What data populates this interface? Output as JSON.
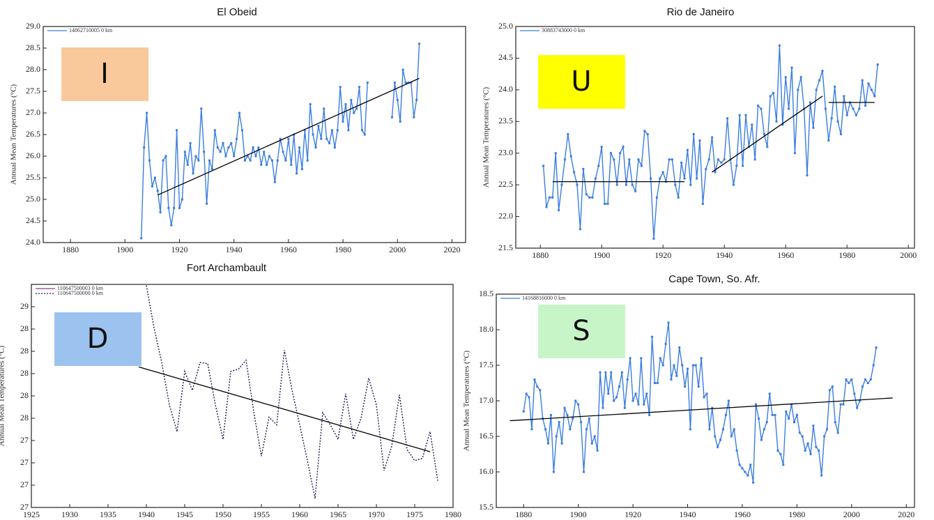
{
  "chart_data": [
    {
      "type": "line",
      "title": "El Obeid",
      "ylabel": "Annual Mean Temperatures (°C)",
      "badge": {
        "label": "I",
        "color": "#f9c89b"
      },
      "markers": true,
      "line_style": "solid",
      "xlim": [
        1870,
        2025
      ],
      "xticks": [
        1880,
        1900,
        1920,
        1940,
        1960,
        1980,
        2000,
        2020
      ],
      "ylim": [
        24,
        29
      ],
      "yticks": [
        {
          "value": 24,
          "label": "24.0"
        },
        {
          "value": 24.5,
          "label": "24.5"
        },
        {
          "value": 25,
          "label": "25.0"
        },
        {
          "value": 25.5,
          "label": "25.5"
        },
        {
          "value": 26,
          "label": "26.0"
        },
        {
          "value": 26.5,
          "label": "26.5"
        },
        {
          "value": 27,
          "label": "27.0"
        },
        {
          "value": 27.5,
          "label": "27.5"
        },
        {
          "value": 28,
          "label": "28.0"
        },
        {
          "value": 28.5,
          "label": "28.5"
        },
        {
          "value": 29,
          "label": "29.0"
        }
      ],
      "trend": {
        "x": [
          1912,
          2008
        ],
        "y": [
          25.1,
          27.8
        ]
      },
      "x": [
        1906,
        1907,
        1908,
        1909,
        1910,
        1911,
        1912,
        1913,
        1914,
        1915,
        1916,
        1917,
        1918,
        1919,
        1920,
        1921,
        1922,
        1923,
        1924,
        1925,
        1926,
        1927,
        1928,
        1929,
        1930,
        1931,
        1932,
        1933,
        1934,
        1935,
        1936,
        1937,
        1938,
        1939,
        1940,
        1941,
        1942,
        1943,
        1944,
        1945,
        1946,
        1947,
        1948,
        1949,
        1950,
        1951,
        1952,
        1953,
        1954,
        1955,
        1956,
        1957,
        1958,
        1959,
        1960,
        1961,
        1962,
        1963,
        1964,
        1965,
        1966,
        1967,
        1968,
        1969,
        1970,
        1971,
        1972,
        1973,
        1974,
        1975,
        1976,
        1977,
        1978,
        1979,
        1980,
        1981,
        1982,
        1983,
        1984,
        1985,
        1986,
        1987,
        1988,
        1989,
        1990,
        1991,
        1992,
        1993,
        1994,
        1995,
        1996,
        1997,
        1998,
        1999,
        2000,
        2001,
        2002,
        2003,
        2004,
        2005,
        2006,
        2007,
        2008
      ],
      "series": [
        {
          "name": "14862710005 0 km",
          "color": "#3a7de0",
          "values": [
            24.1,
            26.2,
            27.0,
            25.9,
            25.3,
            25.5,
            25.2,
            24.7,
            25.9,
            26.0,
            24.8,
            24.4,
            24.8,
            26.6,
            24.8,
            25.0,
            26.1,
            25.8,
            26.3,
            25.6,
            26.0,
            25.9,
            27.1,
            26.1,
            24.9,
            25.9,
            25.7,
            26.6,
            26.2,
            26.1,
            26.3,
            26.0,
            26.2,
            26.3,
            26.0,
            26.4,
            27.0,
            26.6,
            25.9,
            26.0,
            25.9,
            26.2,
            26.0,
            26.2,
            25.8,
            26.1,
            25.8,
            26.0,
            25.9,
            25.4,
            25.9,
            26.4,
            26.1,
            25.9,
            26.4,
            25.8,
            26.5,
            25.6,
            26.2,
            25.7,
            26.6,
            25.9,
            27.2,
            26.5,
            26.2,
            26.7,
            26.4,
            27.1,
            26.4,
            26.3,
            26.6,
            26.2,
            26.6,
            27.6,
            26.8,
            27.2,
            26.6,
            27.3,
            27.0,
            27.1,
            27.6,
            26.6,
            26.5,
            27.7,
            null,
            null,
            null,
            null,
            null,
            null,
            null,
            null,
            26.9,
            27.7,
            27.3,
            26.8,
            28.0,
            27.7,
            27.7,
            27.7,
            26.9,
            27.3,
            28.6
          ]
        }
      ]
    },
    {
      "type": "line",
      "title": "Rio de Janeiro",
      "ylabel": "Annual Mean Temperatures (°C)",
      "badge": {
        "label": "U",
        "color": "#ffff00"
      },
      "markers": true,
      "line_style": "solid",
      "xlim": [
        1872,
        2002
      ],
      "xticks": [
        1880,
        1900,
        1920,
        1940,
        1960,
        1980,
        2000
      ],
      "ylim": [
        21.5,
        25
      ],
      "yticks": [
        {
          "value": 21.5,
          "label": "21.5"
        },
        {
          "value": 22,
          "label": "22.0"
        },
        {
          "value": 22.5,
          "label": "22.5"
        },
        {
          "value": 23,
          "label": "23.0"
        },
        {
          "value": 23.5,
          "label": "23.5"
        },
        {
          "value": 24,
          "label": "24.0"
        },
        {
          "value": 24.5,
          "label": "24.5"
        },
        {
          "value": 25,
          "label": "25.0"
        }
      ],
      "trends": [
        {
          "x": [
            1884,
            1927
          ],
          "y": [
            22.55,
            22.55
          ]
        },
        {
          "x": [
            1936,
            1972
          ],
          "y": [
            22.7,
            23.9
          ]
        },
        {
          "x": [
            1974,
            1989
          ],
          "y": [
            23.8,
            23.8
          ]
        }
      ],
      "x": [
        1881,
        1882,
        1883,
        1884,
        1885,
        1886,
        1887,
        1888,
        1889,
        1890,
        1891,
        1892,
        1893,
        1894,
        1895,
        1896,
        1897,
        1898,
        1899,
        1900,
        1901,
        1902,
        1903,
        1904,
        1905,
        1906,
        1907,
        1908,
        1909,
        1910,
        1911,
        1912,
        1913,
        1914,
        1915,
        1916,
        1917,
        1918,
        1919,
        1920,
        1921,
        1922,
        1923,
        1924,
        1925,
        1926,
        1927,
        1928,
        1929,
        1930,
        1931,
        1932,
        1933,
        1934,
        1935,
        1936,
        1937,
        1938,
        1939,
        1940,
        1941,
        1942,
        1943,
        1944,
        1945,
        1946,
        1947,
        1948,
        1949,
        1950,
        1951,
        1952,
        1953,
        1954,
        1955,
        1956,
        1957,
        1958,
        1959,
        1960,
        1961,
        1962,
        1963,
        1964,
        1965,
        1966,
        1967,
        1968,
        1969,
        1970,
        1971,
        1972,
        1973,
        1974,
        1975,
        1976,
        1977,
        1978,
        1979,
        1980,
        1981,
        1982,
        1983,
        1984,
        1985,
        1986,
        1987,
        1988,
        1989,
        1990
      ],
      "series": [
        {
          "name": "30883743000 0 km",
          "color": "#3a7de0",
          "values": [
            22.8,
            22.15,
            22.3,
            22.3,
            23.0,
            22.1,
            22.5,
            22.9,
            23.3,
            22.95,
            22.7,
            22.5,
            21.8,
            22.75,
            22.35,
            22.3,
            22.3,
            22.6,
            22.8,
            23.1,
            22.2,
            22.2,
            23.0,
            22.9,
            22.5,
            23.0,
            23.1,
            22.5,
            22.9,
            22.5,
            22.4,
            22.9,
            22.8,
            23.35,
            23.3,
            22.6,
            21.65,
            22.3,
            22.6,
            22.7,
            22.55,
            22.9,
            22.9,
            22.5,
            22.3,
            22.85,
            22.6,
            23.05,
            22.5,
            23.3,
            22.6,
            23.2,
            22.2,
            22.75,
            22.9,
            23.25,
            22.7,
            22.9,
            22.85,
            22.9,
            23.55,
            22.9,
            22.5,
            22.8,
            23.6,
            22.8,
            23.6,
            23.1,
            23.45,
            22.9,
            23.75,
            23.7,
            23.3,
            23.1,
            23.9,
            23.95,
            23.5,
            24.7,
            23.45,
            24.2,
            23.7,
            24.35,
            23.0,
            24.0,
            24.2,
            23.7,
            22.65,
            23.8,
            23.4,
            24.0,
            24.15,
            24.3,
            23.7,
            23.2,
            23.55,
            24.05,
            23.5,
            23.3,
            23.9,
            23.6,
            23.8,
            23.7,
            23.6,
            23.7,
            24.15,
            23.75,
            24.1,
            24.0,
            23.9,
            24.4
          ]
        }
      ]
    },
    {
      "type": "line",
      "title": "Fort Archambault",
      "ylabel": "Annual Mean Temperatures (°C)",
      "badge": {
        "label": "D",
        "color": "#9cc3ef"
      },
      "markers": false,
      "line_style": "dotted",
      "xlim": [
        1925,
        1980
      ],
      "xticks": [
        1925,
        1930,
        1935,
        1940,
        1945,
        1950,
        1955,
        1960,
        1965,
        1970,
        1975,
        1980
      ],
      "ylim": [
        27.2,
        29.2
      ],
      "yticks": [
        {
          "value": 27.2,
          "label": "27"
        },
        {
          "value": 27.4,
          "label": "27"
        },
        {
          "value": 27.6,
          "label": "27"
        },
        {
          "value": 27.8,
          "label": "27"
        },
        {
          "value": 28,
          "label": "28"
        },
        {
          "value": 28.2,
          "label": "28"
        },
        {
          "value": 28.4,
          "label": "28"
        },
        {
          "value": 28.6,
          "label": "28"
        },
        {
          "value": 28.8,
          "label": "28"
        },
        {
          "value": 29,
          "label": "29"
        }
      ],
      "trend": {
        "x": [
          1939,
          1977
        ],
        "y": [
          28.46,
          27.7
        ]
      },
      "x": [
        1940,
        1941,
        1942,
        1943,
        1944,
        1945,
        1946,
        1947,
        1948,
        1949,
        1950,
        1951,
        1952,
        1953,
        1954,
        1955,
        1956,
        1957,
        1958,
        1959,
        1960,
        1961,
        1962,
        1963,
        1964,
        1965,
        1966,
        1967,
        1968,
        1969,
        1970,
        1971,
        1972,
        1973,
        1974,
        1975,
        1976,
        1977,
        1978
      ],
      "series": [
        {
          "name": "110647500003 0 km",
          "color": "#8b3a8b",
          "line_style": "solid",
          "values": [
            null,
            null,
            null,
            null,
            null,
            null,
            null,
            null,
            null,
            null,
            null,
            null,
            null,
            null,
            null,
            null,
            null,
            null,
            null,
            null,
            null,
            null,
            null,
            null,
            null,
            null,
            null,
            null,
            null,
            null,
            null,
            null,
            null,
            null,
            null,
            null,
            null,
            null,
            null
          ]
        },
        {
          "name": "110647500000 0 km",
          "color": "#1a1a5a",
          "line_style": "dotted",
          "values": [
            29.19,
            28.81,
            28.5,
            28.12,
            27.88,
            28.42,
            28.25,
            28.5,
            28.49,
            28.12,
            27.81,
            28.42,
            28.44,
            28.52,
            28.06,
            27.66,
            28.01,
            27.94,
            28.61,
            28.25,
            27.94,
            27.62,
            27.28,
            28.05,
            27.94,
            27.81,
            28.22,
            27.81,
            28.0,
            28.36,
            28.12,
            27.53,
            27.75,
            28.21,
            27.72,
            27.62,
            27.64,
            27.88,
            27.44
          ]
        }
      ]
    },
    {
      "type": "line",
      "title": "Cape Town, So. Afr.",
      "ylabel": "Annual Mean Temperatures (°C)",
      "badge": {
        "label": "S",
        "color": "#c8f5c8"
      },
      "markers": true,
      "line_style": "solid",
      "xlim": [
        1870,
        2023
      ],
      "xticks": [
        1880,
        1900,
        1920,
        1940,
        1960,
        1980,
        2000,
        2020
      ],
      "ylim": [
        15.5,
        18.5
      ],
      "yticks": [
        {
          "value": 15.5,
          "label": "15.5"
        },
        {
          "value": 16,
          "label": "16.0"
        },
        {
          "value": 16.5,
          "label": "16.5"
        },
        {
          "value": 17,
          "label": "17.0"
        },
        {
          "value": 17.5,
          "label": "17.5"
        },
        {
          "value": 18,
          "label": "18.0"
        },
        {
          "value": 18.5,
          "label": "18.5"
        }
      ],
      "trend": {
        "x": [
          1875,
          2015
        ],
        "y": [
          16.72,
          17.04
        ]
      },
      "x": [
        1880,
        1881,
        1882,
        1883,
        1884,
        1885,
        1886,
        1887,
        1888,
        1889,
        1890,
        1891,
        1892,
        1893,
        1894,
        1895,
        1896,
        1897,
        1898,
        1899,
        1900,
        1901,
        1902,
        1903,
        1904,
        1905,
        1906,
        1907,
        1908,
        1909,
        1910,
        1911,
        1912,
        1913,
        1914,
        1915,
        1916,
        1917,
        1918,
        1919,
        1920,
        1921,
        1922,
        1923,
        1924,
        1925,
        1926,
        1927,
        1928,
        1929,
        1930,
        1931,
        1932,
        1933,
        1934,
        1935,
        1936,
        1937,
        1938,
        1939,
        1940,
        1941,
        1942,
        1943,
        1944,
        1945,
        1946,
        1947,
        1948,
        1949,
        1950,
        1951,
        1952,
        1953,
        1954,
        1955,
        1956,
        1957,
        1958,
        1959,
        1960,
        1961,
        1962,
        1963,
        1964,
        1965,
        1966,
        1967,
        1968,
        1969,
        1970,
        1971,
        1972,
        1973,
        1974,
        1975,
        1976,
        1977,
        1978,
        1979,
        1980,
        1981,
        1982,
        1983,
        1984,
        1985,
        1986,
        1987,
        1988,
        1989,
        1990,
        1991,
        1992,
        1993,
        1994,
        1995,
        1996,
        1997,
        1998,
        1999,
        2000,
        2001,
        2002,
        2003,
        2004,
        2005,
        2006,
        2007,
        2008,
        2009
      ],
      "series": [
        {
          "name": "14168816000 0 km",
          "color": "#3a7de0",
          "values": [
            16.85,
            17.1,
            17.05,
            16.6,
            17.3,
            17.2,
            17.15,
            16.75,
            16.6,
            16.4,
            16.8,
            16.0,
            16.5,
            16.7,
            16.4,
            16.9,
            16.8,
            16.6,
            16.75,
            17.0,
            16.95,
            16.7,
            16.0,
            16.6,
            16.75,
            16.4,
            16.5,
            16.3,
            17.4,
            16.9,
            17.4,
            17.1,
            17.4,
            17.0,
            17.05,
            17.2,
            17.4,
            16.9,
            17.3,
            17.6,
            17.0,
            17.1,
            16.95,
            17.6,
            16.95,
            17.1,
            16.8,
            17.9,
            17.25,
            17.25,
            17.6,
            17.5,
            17.8,
            18.1,
            17.3,
            17.5,
            17.35,
            17.75,
            17.5,
            17.2,
            17.45,
            16.6,
            17.5,
            17.5,
            17.2,
            17.6,
            17.05,
            17.1,
            16.6,
            16.9,
            16.5,
            16.35,
            16.45,
            16.6,
            16.8,
            17.0,
            16.5,
            16.6,
            16.3,
            16.1,
            16.05,
            16.0,
            15.95,
            16.1,
            15.85,
            16.95,
            16.75,
            16.45,
            16.6,
            16.7,
            17.1,
            16.8,
            16.8,
            16.3,
            16.25,
            16.1,
            16.85,
            16.75,
            16.95,
            16.7,
            16.8,
            16.55,
            16.5,
            16.3,
            16.4,
            16.25,
            16.65,
            16.35,
            16.3,
            15.95,
            16.5,
            16.6,
            17.15,
            17.2,
            16.7,
            16.55,
            16.95,
            16.95,
            17.3,
            17.25,
            17.3,
            17.1,
            16.9,
            17.0,
            17.2,
            17.3,
            17.25,
            17.3,
            17.5,
            17.75
          ]
        }
      ]
    }
  ]
}
